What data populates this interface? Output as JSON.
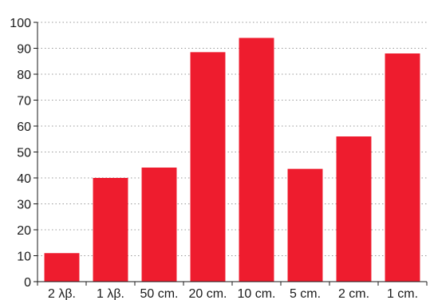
{
  "chart_data": {
    "type": "bar",
    "categories": [
      "2 λβ.",
      "1 λβ.",
      "50 cm.",
      "20 cm.",
      "10 cm.",
      "5 cm.",
      "2 cm.",
      "1 cm."
    ],
    "values": [
      11,
      40,
      44,
      88.5,
      94,
      43.5,
      56,
      88
    ],
    "title": "",
    "xlabel": "",
    "ylabel": "",
    "ylim": [
      0,
      100
    ],
    "yticks": [
      0,
      10,
      20,
      30,
      40,
      50,
      60,
      70,
      80,
      90,
      100
    ],
    "grid": true,
    "legend": "none",
    "bar_color": "#ee1c2e",
    "axis_color": "#1a1a1a",
    "grid_color": "#9a9a9a"
  }
}
